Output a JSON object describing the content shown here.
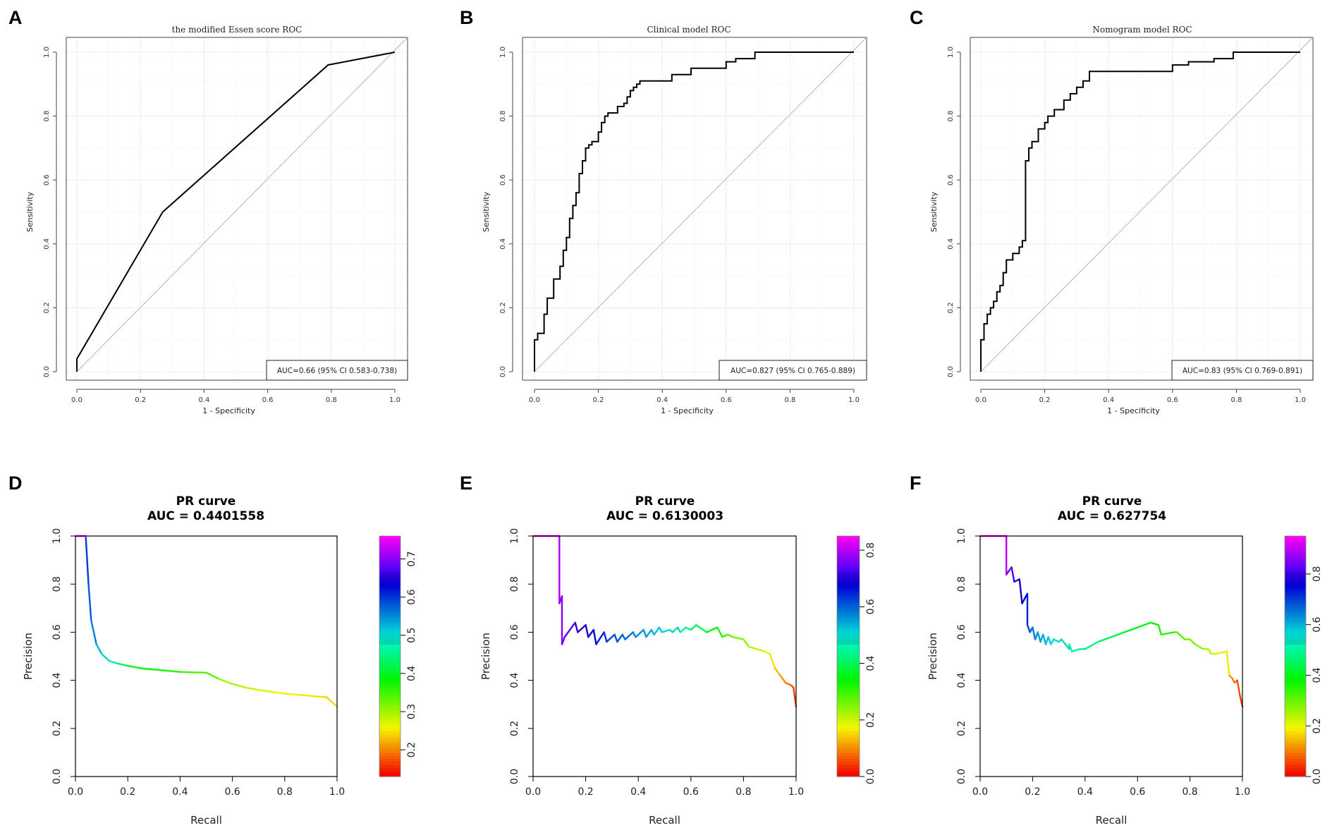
{
  "chart_data": [
    {
      "panel": "A",
      "type": "line",
      "title": "the modified Essen score ROC",
      "xlabel": "1 - Specificity",
      "ylabel": "Sensitivity",
      "xlim": [
        0,
        1
      ],
      "ylim": [
        0,
        1
      ],
      "xticks": [
        "0.0",
        "0.2",
        "0.4",
        "0.6",
        "0.8",
        "1.0"
      ],
      "yticks": [
        "0.0",
        "0.2",
        "0.4",
        "0.6",
        "0.8",
        "1.0"
      ],
      "grid": true,
      "diagonal": true,
      "series": [
        {
          "name": "ROC",
          "x": [
            0,
            0,
            0.27,
            0.79,
            1.0
          ],
          "y": [
            0,
            0.04,
            0.5,
            0.96,
            1.0
          ]
        }
      ],
      "legend": "AUC=0.66 (95% CI 0.583-0.738)"
    },
    {
      "panel": "B",
      "type": "line",
      "title": "Clinical model ROC",
      "xlabel": "1 - Specificity",
      "ylabel": "Sensitivity",
      "xlim": [
        0,
        1
      ],
      "ylim": [
        0,
        1
      ],
      "xticks": [
        "0.0",
        "0.2",
        "0.4",
        "0.6",
        "0.8",
        "1.0"
      ],
      "yticks": [
        "0.0",
        "0.2",
        "0.4",
        "0.6",
        "0.8",
        "1.0"
      ],
      "grid": true,
      "diagonal": true,
      "series": [
        {
          "name": "ROC",
          "x": [
            0,
            0,
            0.01,
            0.01,
            0.03,
            0.03,
            0.04,
            0.04,
            0.06,
            0.06,
            0.08,
            0.08,
            0.09,
            0.09,
            0.1,
            0.1,
            0.11,
            0.11,
            0.12,
            0.12,
            0.13,
            0.13,
            0.14,
            0.14,
            0.15,
            0.15,
            0.16,
            0.16,
            0.17,
            0.17,
            0.18,
            0.18,
            0.2,
            0.2,
            0.21,
            0.21,
            0.22,
            0.22,
            0.23,
            0.23,
            0.26,
            0.26,
            0.28,
            0.28,
            0.29,
            0.29,
            0.3,
            0.3,
            0.31,
            0.31,
            0.32,
            0.32,
            0.33,
            0.33,
            0.43,
            0.43,
            0.49,
            0.49,
            0.6,
            0.6,
            0.63,
            0.63,
            0.69,
            0.69,
            1.0
          ],
          "y": [
            0,
            0.1,
            0.1,
            0.12,
            0.12,
            0.18,
            0.18,
            0.23,
            0.23,
            0.29,
            0.29,
            0.33,
            0.33,
            0.38,
            0.38,
            0.42,
            0.42,
            0.48,
            0.48,
            0.52,
            0.52,
            0.56,
            0.56,
            0.62,
            0.62,
            0.66,
            0.66,
            0.7,
            0.7,
            0.71,
            0.71,
            0.72,
            0.72,
            0.75,
            0.75,
            0.78,
            0.78,
            0.8,
            0.8,
            0.81,
            0.81,
            0.83,
            0.83,
            0.84,
            0.84,
            0.86,
            0.86,
            0.88,
            0.88,
            0.89,
            0.89,
            0.9,
            0.9,
            0.91,
            0.91,
            0.93,
            0.93,
            0.95,
            0.95,
            0.97,
            0.97,
            0.98,
            0.98,
            1.0,
            1.0
          ]
        }
      ],
      "legend": "AUC=0.827 (95% CI 0.765-0.889)"
    },
    {
      "panel": "C",
      "type": "line",
      "title": "Nomogram model ROC",
      "xlabel": "1 - Specificity",
      "ylabel": "Sensitivity",
      "xlim": [
        0,
        1
      ],
      "ylim": [
        0,
        1
      ],
      "xticks": [
        "0.0",
        "0.2",
        "0.4",
        "0.6",
        "0.8",
        "1.0"
      ],
      "yticks": [
        "0.0",
        "0.2",
        "0.4",
        "0.6",
        "0.8",
        "1.0"
      ],
      "grid": true,
      "diagonal": true,
      "series": [
        {
          "name": "ROC",
          "x": [
            0,
            0,
            0.01,
            0.01,
            0.02,
            0.02,
            0.03,
            0.03,
            0.04,
            0.04,
            0.05,
            0.05,
            0.06,
            0.06,
            0.07,
            0.07,
            0.08,
            0.08,
            0.1,
            0.1,
            0.12,
            0.12,
            0.13,
            0.13,
            0.14,
            0.14,
            0.15,
            0.15,
            0.16,
            0.16,
            0.18,
            0.18,
            0.2,
            0.2,
            0.21,
            0.21,
            0.23,
            0.23,
            0.26,
            0.26,
            0.28,
            0.28,
            0.3,
            0.3,
            0.32,
            0.32,
            0.34,
            0.34,
            0.36,
            0.36,
            0.6,
            0.6,
            0.65,
            0.65,
            0.73,
            0.73,
            0.79,
            0.79,
            1.0
          ],
          "y": [
            0,
            0.1,
            0.1,
            0.15,
            0.15,
            0.18,
            0.18,
            0.2,
            0.2,
            0.22,
            0.22,
            0.25,
            0.25,
            0.27,
            0.27,
            0.31,
            0.31,
            0.35,
            0.35,
            0.37,
            0.37,
            0.39,
            0.39,
            0.41,
            0.41,
            0.66,
            0.66,
            0.7,
            0.7,
            0.72,
            0.72,
            0.76,
            0.76,
            0.78,
            0.78,
            0.8,
            0.8,
            0.82,
            0.82,
            0.85,
            0.85,
            0.87,
            0.87,
            0.89,
            0.89,
            0.91,
            0.91,
            0.94,
            0.94,
            0.94,
            0.94,
            0.96,
            0.96,
            0.97,
            0.97,
            0.98,
            0.98,
            1.0,
            1.0
          ]
        }
      ],
      "legend": "AUC=0.83 (95% CI 0.769-0.891)"
    },
    {
      "panel": "D",
      "type": "line",
      "title": "PR curve",
      "subtitle": "AUC = 0.4401558",
      "xlabel": "Recall",
      "ylabel": "Precision",
      "xlim": [
        0,
        1
      ],
      "ylim": [
        0,
        1
      ],
      "xticks": [
        "0.0",
        "0.2",
        "0.4",
        "0.6",
        "0.8",
        "1.0"
      ],
      "yticks": [
        "0.0",
        "0.2",
        "0.4",
        "0.6",
        "0.8",
        "1.0"
      ],
      "colorbar_range": [
        0.13,
        0.76
      ],
      "colorbar_ticks": [
        "0.2",
        "0.3",
        "0.4",
        "0.5",
        "0.6",
        "0.7"
      ],
      "series": [
        {
          "name": "PR",
          "x": [
            0.0,
            0.04,
            0.04,
            0.05,
            0.06,
            0.08,
            0.1,
            0.13,
            0.16,
            0.2,
            0.25,
            0.3,
            0.35,
            0.4,
            0.45,
            0.5,
            0.55,
            0.6,
            0.65,
            0.7,
            0.75,
            0.8,
            0.85,
            0.9,
            0.96,
            1.0
          ],
          "y": [
            1.0,
            1.0,
            0.99,
            0.8,
            0.65,
            0.55,
            0.51,
            0.48,
            0.47,
            0.46,
            0.45,
            0.445,
            0.44,
            0.435,
            0.433,
            0.432,
            0.405,
            0.385,
            0.37,
            0.36,
            0.352,
            0.345,
            0.34,
            0.335,
            0.33,
            0.29
          ],
          "thresholds": [
            0.76,
            0.76,
            0.6,
            0.58,
            0.56,
            0.53,
            0.5,
            0.47,
            0.43,
            0.4,
            0.38,
            0.37,
            0.36,
            0.35,
            0.345,
            0.34,
            0.3,
            0.29,
            0.28,
            0.27,
            0.26,
            0.255,
            0.25,
            0.245,
            0.24,
            0.13
          ]
        }
      ]
    },
    {
      "panel": "E",
      "type": "line",
      "title": "PR curve",
      "subtitle": "AUC = 0.6130003",
      "xlabel": "Recall",
      "ylabel": "Precision",
      "xlim": [
        0,
        1
      ],
      "ylim": [
        0,
        1
      ],
      "xticks": [
        "0.0",
        "0.2",
        "0.4",
        "0.6",
        "0.8",
        "1.0"
      ],
      "yticks": [
        "0.0",
        "0.2",
        "0.4",
        "0.6",
        "0.8",
        "1.0"
      ],
      "colorbar_range": [
        0.0,
        0.85
      ],
      "colorbar_ticks": [
        "0.0",
        "0.2",
        "0.4",
        "0.6",
        "0.8"
      ],
      "series": [
        {
          "name": "PR",
          "x": [
            0.0,
            0.1,
            0.1,
            0.11,
            0.11,
            0.12,
            0.16,
            0.17,
            0.2,
            0.21,
            0.23,
            0.24,
            0.27,
            0.28,
            0.31,
            0.32,
            0.34,
            0.35,
            0.38,
            0.39,
            0.42,
            0.43,
            0.45,
            0.46,
            0.48,
            0.49,
            0.52,
            0.53,
            0.55,
            0.56,
            0.58,
            0.6,
            0.62,
            0.66,
            0.68,
            0.7,
            0.72,
            0.74,
            0.76,
            0.8,
            0.82,
            0.85,
            0.88,
            0.9,
            0.92,
            0.94,
            0.96,
            0.98,
            0.99,
            1.0
          ],
          "y": [
            1.0,
            1.0,
            0.72,
            0.75,
            0.55,
            0.58,
            0.64,
            0.6,
            0.63,
            0.58,
            0.61,
            0.55,
            0.6,
            0.56,
            0.59,
            0.56,
            0.59,
            0.57,
            0.6,
            0.58,
            0.61,
            0.58,
            0.61,
            0.59,
            0.62,
            0.6,
            0.61,
            0.6,
            0.62,
            0.6,
            0.62,
            0.61,
            0.63,
            0.6,
            0.61,
            0.62,
            0.58,
            0.59,
            0.58,
            0.57,
            0.54,
            0.53,
            0.52,
            0.51,
            0.45,
            0.42,
            0.39,
            0.38,
            0.37,
            0.29
          ],
          "thresholds": [
            0.85,
            0.8,
            0.78,
            0.77,
            0.75,
            0.74,
            0.72,
            0.71,
            0.7,
            0.69,
            0.67,
            0.66,
            0.64,
            0.63,
            0.62,
            0.61,
            0.6,
            0.59,
            0.58,
            0.57,
            0.56,
            0.55,
            0.54,
            0.53,
            0.52,
            0.51,
            0.5,
            0.49,
            0.47,
            0.46,
            0.44,
            0.42,
            0.4,
            0.37,
            0.35,
            0.32,
            0.3,
            0.28,
            0.26,
            0.24,
            0.22,
            0.2,
            0.18,
            0.16,
            0.13,
            0.1,
            0.08,
            0.06,
            0.04,
            0.0
          ]
        }
      ]
    },
    {
      "panel": "F",
      "type": "line",
      "title": "PR curve",
      "subtitle": "AUC = 0.627754",
      "xlabel": "Recall",
      "ylabel": "Precision",
      "xlim": [
        0,
        1
      ],
      "ylim": [
        0,
        1
      ],
      "xticks": [
        "0.0",
        "0.2",
        "0.4",
        "0.6",
        "0.8",
        "1.0"
      ],
      "yticks": [
        "0.0",
        "0.2",
        "0.4",
        "0.6",
        "0.8",
        "1.0"
      ],
      "colorbar_range": [
        0.0,
        0.95
      ],
      "colorbar_ticks": [
        "0.0",
        "0.2",
        "0.4",
        "0.6",
        "0.8"
      ],
      "series": [
        {
          "name": "PR",
          "x": [
            0.0,
            0.1,
            0.1,
            0.12,
            0.13,
            0.15,
            0.16,
            0.18,
            0.18,
            0.19,
            0.2,
            0.21,
            0.22,
            0.23,
            0.24,
            0.25,
            0.26,
            0.27,
            0.28,
            0.3,
            0.31,
            0.34,
            0.34,
            0.35,
            0.38,
            0.39,
            0.4,
            0.45,
            0.5,
            0.55,
            0.6,
            0.65,
            0.68,
            0.69,
            0.74,
            0.75,
            0.78,
            0.8,
            0.82,
            0.85,
            0.87,
            0.88,
            0.9,
            0.94,
            0.95,
            0.96,
            0.97,
            0.98,
            0.99,
            1.0
          ],
          "y": [
            1.0,
            1.0,
            0.84,
            0.87,
            0.81,
            0.82,
            0.72,
            0.76,
            0.63,
            0.6,
            0.62,
            0.57,
            0.6,
            0.56,
            0.59,
            0.55,
            0.58,
            0.55,
            0.57,
            0.56,
            0.57,
            0.53,
            0.55,
            0.52,
            0.53,
            0.53,
            0.53,
            0.56,
            0.58,
            0.6,
            0.62,
            0.64,
            0.63,
            0.59,
            0.6,
            0.6,
            0.57,
            0.57,
            0.55,
            0.53,
            0.53,
            0.51,
            0.51,
            0.52,
            0.42,
            0.41,
            0.39,
            0.4,
            0.34,
            0.29
          ],
          "thresholds": [
            0.95,
            0.9,
            0.85,
            0.82,
            0.8,
            0.78,
            0.76,
            0.73,
            0.7,
            0.68,
            0.66,
            0.64,
            0.62,
            0.61,
            0.6,
            0.59,
            0.58,
            0.57,
            0.56,
            0.55,
            0.54,
            0.53,
            0.52,
            0.51,
            0.5,
            0.49,
            0.48,
            0.45,
            0.43,
            0.41,
            0.39,
            0.37,
            0.36,
            0.35,
            0.33,
            0.32,
            0.3,
            0.29,
            0.27,
            0.25,
            0.24,
            0.23,
            0.21,
            0.18,
            0.12,
            0.1,
            0.08,
            0.06,
            0.04,
            0.0
          ]
        }
      ]
    }
  ]
}
